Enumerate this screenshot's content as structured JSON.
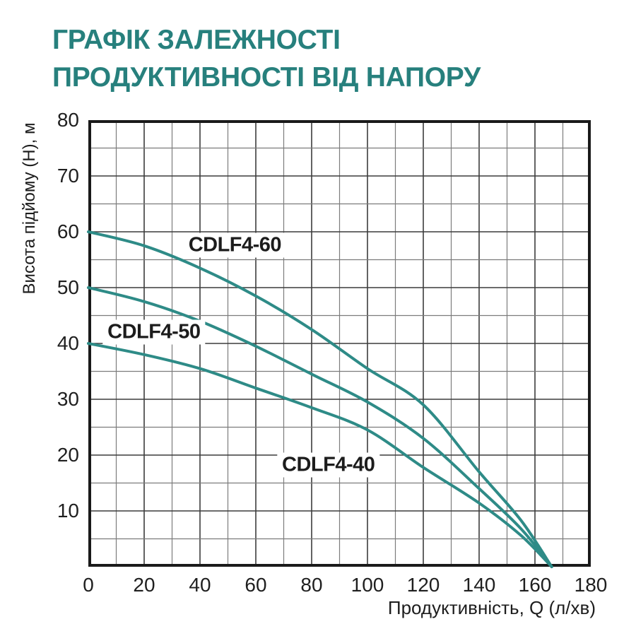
{
  "title": {
    "line1": "ГРАФІК ЗАЛЕЖНОСТІ",
    "line2": "ПРОДУКТИВНОСТІ ВІД НАПОРУ",
    "color": "#27807d"
  },
  "chart_data": {
    "type": "line",
    "title": "ГРАФІК ЗАЛЕЖНОСТІ ПРОДУКТИВНОСТІ ВІД НАПОРУ",
    "xlabel": "Продуктивність, Q (л/хв)",
    "ylabel": "Висота підйому (Н), м",
    "xlim": [
      0,
      180
    ],
    "ylim": [
      0,
      80
    ],
    "grid": {
      "on": true,
      "x_step": 10,
      "y_step": 5,
      "x_major_every": 20,
      "y_major_every": 10
    },
    "x_ticks": [
      0,
      20,
      40,
      60,
      80,
      100,
      120,
      140,
      160,
      180
    ],
    "y_ticks": [
      10,
      20,
      30,
      40,
      50,
      60,
      70,
      80
    ],
    "legend_position": "labels-on-plot",
    "series": [
      {
        "name": "CDLF4-60",
        "label_q": 52.5,
        "label_h": 57.6,
        "points": [
          [
            0,
            60
          ],
          [
            20,
            57.5
          ],
          [
            40,
            53.5
          ],
          [
            60,
            48.5
          ],
          [
            80,
            42.5
          ],
          [
            100,
            35.5
          ],
          [
            120,
            29
          ],
          [
            140,
            17
          ],
          [
            155,
            8.3
          ],
          [
            166,
            0
          ]
        ]
      },
      {
        "name": "CDLF4-50",
        "label_q": 23.5,
        "label_h": 42.0,
        "points": [
          [
            0,
            50
          ],
          [
            20,
            47.5
          ],
          [
            40,
            44
          ],
          [
            60,
            39.5
          ],
          [
            80,
            34.5
          ],
          [
            100,
            29.5
          ],
          [
            120,
            23
          ],
          [
            140,
            14
          ],
          [
            155,
            6.8
          ],
          [
            166,
            0
          ]
        ]
      },
      {
        "name": "CDLF4-40",
        "label_q": 86.0,
        "label_h": 18.2,
        "points": [
          [
            0,
            40
          ],
          [
            20,
            38
          ],
          [
            40,
            35.5
          ],
          [
            60,
            32
          ],
          [
            80,
            28.5
          ],
          [
            100,
            24.5
          ],
          [
            120,
            17.8
          ],
          [
            140,
            11.4
          ],
          [
            155,
            5.6
          ],
          [
            166,
            0
          ]
        ]
      }
    ],
    "colors": {
      "curve": "#2e8b87",
      "grid_minor": "#7c7c7c",
      "grid_major": "#3c3c3c",
      "border": "#1a1a1a",
      "tick_text": "#1f1f1f"
    }
  }
}
